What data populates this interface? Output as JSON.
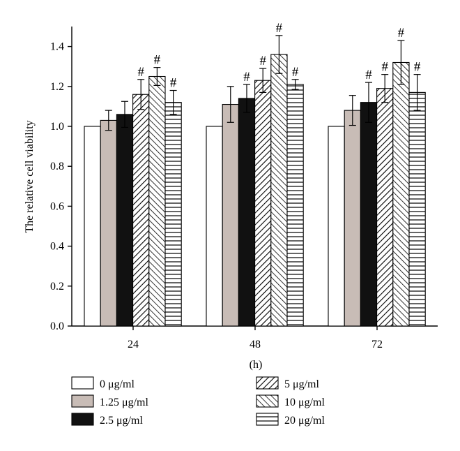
{
  "chart_data": {
    "type": "bar",
    "title": "",
    "xlabel": "(h)",
    "ylabel": "The relative cell viability",
    "ylim": [
      0,
      1.5
    ],
    "yticks": [
      "0.0",
      "0.2",
      "0.4",
      "0.6",
      "0.8",
      "1.0",
      "1.2",
      "1.4"
    ],
    "categories": [
      "24",
      "48",
      "72"
    ],
    "significance_marker": "#",
    "grid": false,
    "legend_position": "bottom",
    "series": [
      {
        "name": "0 μg/ml",
        "fill": "white",
        "values": [
          1.0,
          1.0,
          1.0
        ],
        "errors": [
          0,
          0,
          0
        ],
        "significant": [
          false,
          false,
          false
        ]
      },
      {
        "name": "1.25 μg/ml",
        "fill": "gray",
        "values": [
          1.03,
          1.11,
          1.08
        ],
        "errors": [
          0.05,
          0.09,
          0.075
        ],
        "significant": [
          false,
          false,
          false
        ]
      },
      {
        "name": "2.5 μg/ml",
        "fill": "black",
        "values": [
          1.06,
          1.14,
          1.12
        ],
        "errors": [
          0.065,
          0.07,
          0.1
        ],
        "significant": [
          false,
          true,
          true
        ]
      },
      {
        "name": "5 μg/ml",
        "fill": "hatch-fwd",
        "values": [
          1.16,
          1.23,
          1.19
        ],
        "errors": [
          0.075,
          0.06,
          0.07
        ],
        "significant": [
          true,
          true,
          true
        ]
      },
      {
        "name": "10 μg/ml",
        "fill": "hatch-back",
        "values": [
          1.25,
          1.36,
          1.32
        ],
        "errors": [
          0.045,
          0.095,
          0.11
        ],
        "significant": [
          true,
          true,
          true
        ]
      },
      {
        "name": "20 μg/ml",
        "fill": "hatch-horiz",
        "values": [
          1.12,
          1.21,
          1.17
        ],
        "errors": [
          0.06,
          0.025,
          0.09
        ],
        "significant": [
          true,
          true,
          true
        ]
      }
    ]
  },
  "colors": {
    "gray": "#c8bcb6",
    "black": "#111111",
    "white": "#ffffff",
    "stroke": "#000000"
  }
}
